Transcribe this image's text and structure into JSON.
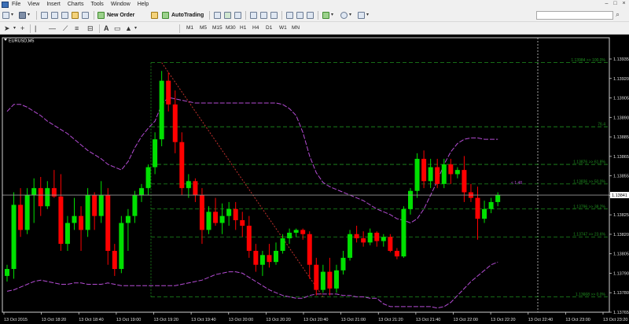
{
  "menu": [
    "File",
    "View",
    "Insert",
    "Charts",
    "Tools",
    "Window",
    "Help"
  ],
  "window_controls": [
    "–",
    "□",
    "×"
  ],
  "toolbar": {
    "new_order": "New Order",
    "autotrading": "AutoTrading",
    "timeframes": [
      "M1",
      "M5",
      "M15",
      "M30",
      "H1",
      "H4",
      "D1",
      "W1",
      "MN"
    ]
  },
  "chart": {
    "symbol_label": "EURUSD,M5",
    "colors": {
      "bull": "#00e000",
      "bear": "#ff0000",
      "band": "#b44cd4",
      "fib": "#1f8f1f",
      "trend": "#c0302c",
      "bid": "#999999"
    },
    "price_axis": {
      "ticks": [
        "1.13935",
        "1.13920",
        "1.13905",
        "1.13890",
        "1.13885",
        "1.13865",
        "1.13855",
        "1.13840",
        "1.13825",
        "1.13820",
        "1.13805",
        "1.13790",
        "1.13780",
        "1.13765"
      ],
      "current_price": "1.13841"
    },
    "time_axis": [
      "13 Oct 2015",
      "13 Oct 18:20",
      "13 Oct 18:40",
      "13 Oct 19:00",
      "13 Oct 19:20",
      "13 Oct 19:40",
      "13 Oct 20:00",
      "13 Oct 20:20",
      "13 Oct 20:40",
      "13 Oct 21:00",
      "13 Oct 21:20",
      "13 Oct 21:40",
      "13 Oct 22:00",
      "13 Oct 22:20",
      "13 Oct 22:40",
      "13 Oct 23:00",
      "13 Oct 23:20"
    ],
    "fib_levels": [
      {
        "label": "1.13984 >> 100.0%",
        "price": 1.13935
      },
      {
        "label": "76.4",
        "price": 1.13889
      },
      {
        "label": "1.13876 >> 61.8%",
        "price": 1.13862
      },
      {
        "label": "1.13836 >> 50.0%",
        "price": 1.13848
      },
      {
        "label": "1.13796 >> 38.2%",
        "price": 1.1383
      },
      {
        "label": "1.13747 >> 23.6%",
        "price": 1.1381
      },
      {
        "label": "1.13668 >> 0.0%",
        "price": 1.13767
      }
    ],
    "bid_tag": "< 1.48",
    "price_range": [
      1.13756,
      1.1395
    ]
  },
  "chart_data": {
    "type": "candlestick",
    "candles": [
      [
        1.13782,
        1.1379,
        1.13778,
        1.13787
      ],
      [
        1.13787,
        1.13842,
        1.1378,
        1.13833
      ],
      [
        1.13833,
        1.13845,
        1.1381,
        1.13815
      ],
      [
        1.13815,
        1.13845,
        1.13812,
        1.1384
      ],
      [
        1.1384,
        1.13852,
        1.1382,
        1.13845
      ],
      [
        1.13845,
        1.13853,
        1.13825,
        1.13832
      ],
      [
        1.13832,
        1.1385,
        1.1383,
        1.13845
      ],
      [
        1.13845,
        1.13858,
        1.13838,
        1.13839
      ],
      [
        1.13839,
        1.13855,
        1.138,
        1.13805
      ],
      [
        1.13805,
        1.13825,
        1.138,
        1.1382
      ],
      [
        1.1382,
        1.13838,
        1.13815,
        1.13825
      ],
      [
        1.13825,
        1.13832,
        1.138,
        1.13815
      ],
      [
        1.13815,
        1.13845,
        1.1381,
        1.1384
      ],
      [
        1.1384,
        1.13842,
        1.13815,
        1.13825
      ],
      [
        1.13825,
        1.1385,
        1.1382,
        1.1384
      ],
      [
        1.1384,
        1.13845,
        1.1379,
        1.138
      ],
      [
        1.138,
        1.13805,
        1.13782,
        1.13787
      ],
      [
        1.13787,
        1.13825,
        1.13784,
        1.1382
      ],
      [
        1.1382,
        1.1383,
        1.138,
        1.13825
      ],
      [
        1.13825,
        1.13843,
        1.1382,
        1.1384
      ],
      [
        1.1384,
        1.13848,
        1.13835,
        1.13845
      ],
      [
        1.13845,
        1.13862,
        1.1384,
        1.1386
      ],
      [
        1.1386,
        1.13885,
        1.13855,
        1.1388
      ],
      [
        1.1388,
        1.13929,
        1.13875,
        1.13922
      ],
      [
        1.13922,
        1.13928,
        1.139,
        1.13905
      ],
      [
        1.13905,
        1.13915,
        1.1387,
        1.13878
      ],
      [
        1.13878,
        1.13885,
        1.1384,
        1.13845
      ],
      [
        1.13845,
        1.13855,
        1.13838,
        1.1385
      ],
      [
        1.1385,
        1.13852,
        1.13835,
        1.1384
      ],
      [
        1.1384,
        1.13845,
        1.13805,
        1.13815
      ],
      [
        1.13815,
        1.13832,
        1.13812,
        1.13828
      ],
      [
        1.13828,
        1.13838,
        1.13818,
        1.1382
      ],
      [
        1.1382,
        1.13834,
        1.13812,
        1.13825
      ],
      [
        1.13825,
        1.13835,
        1.13818,
        1.1383
      ],
      [
        1.1383,
        1.13835,
        1.13815,
        1.13822
      ],
      [
        1.13822,
        1.13828,
        1.1381,
        1.13818
      ],
      [
        1.13818,
        1.13825,
        1.13795,
        1.138
      ],
      [
        1.138,
        1.13805,
        1.13785,
        1.1379
      ],
      [
        1.1379,
        1.138,
        1.13782,
        1.13797
      ],
      [
        1.13797,
        1.13805,
        1.13788,
        1.13792
      ],
      [
        1.13792,
        1.13806,
        1.1379,
        1.138
      ],
      [
        1.138,
        1.13812,
        1.13798,
        1.13809
      ],
      [
        1.13809,
        1.13816,
        1.13805,
        1.13813
      ],
      [
        1.13813,
        1.13816,
        1.1381,
        1.13815
      ],
      [
        1.13815,
        1.13816,
        1.13808,
        1.13812
      ],
      [
        1.13812,
        1.13814,
        1.1378,
        1.1379
      ],
      [
        1.1379,
        1.13795,
        1.13768,
        1.13772
      ],
      [
        1.13772,
        1.1379,
        1.1377,
        1.13785
      ],
      [
        1.13785,
        1.13795,
        1.13768,
        1.13773
      ],
      [
        1.13773,
        1.1379,
        1.1377,
        1.13786
      ],
      [
        1.13786,
        1.138,
        1.13783,
        1.13795
      ],
      [
        1.13795,
        1.13815,
        1.13793,
        1.13812
      ],
      [
        1.13812,
        1.13818,
        1.13806,
        1.13809
      ],
      [
        1.13809,
        1.13814,
        1.13803,
        1.13806
      ],
      [
        1.13806,
        1.13816,
        1.13804,
        1.13813
      ],
      [
        1.13813,
        1.13814,
        1.13803,
        1.13807
      ],
      [
        1.13807,
        1.13812,
        1.13803,
        1.1381
      ],
      [
        1.1381,
        1.13812,
        1.13799,
        1.138
      ],
      [
        1.138,
        1.13802,
        1.13794,
        1.13796
      ],
      [
        1.13796,
        1.13832,
        1.13795,
        1.1383
      ],
      [
        1.1383,
        1.13845,
        1.13826,
        1.13843
      ],
      [
        1.13843,
        1.1387,
        1.13838,
        1.13866
      ],
      [
        1.13866,
        1.13872,
        1.13845,
        1.1385
      ],
      [
        1.1385,
        1.13866,
        1.13845,
        1.1386
      ],
      [
        1.1386,
        1.13866,
        1.13845,
        1.13848
      ],
      [
        1.13848,
        1.13866,
        1.13845,
        1.13862
      ],
      [
        1.13862,
        1.13866,
        1.13848,
        1.13855
      ],
      [
        1.13855,
        1.1386,
        1.13852,
        1.13858
      ],
      [
        1.13858,
        1.13868,
        1.13835,
        1.13842
      ],
      [
        1.13842,
        1.13848,
        1.13835,
        1.13838
      ],
      [
        1.13838,
        1.13846,
        1.13808,
        1.13823
      ],
      [
        1.13823,
        1.13836,
        1.1382,
        1.1383
      ],
      [
        1.1383,
        1.13838,
        1.13827,
        1.13835
      ],
      [
        1.13835,
        1.13842,
        1.13832,
        1.1384
      ]
    ],
    "bands": {
      "upper": [
        1.139,
        1.13905,
        1.13905,
        1.13903,
        1.139,
        1.13897,
        1.13893,
        1.1389,
        1.13887,
        1.13884,
        1.1388,
        1.13876,
        1.13872,
        1.13869,
        1.13866,
        1.13862,
        1.1386,
        1.13858,
        1.13864,
        1.13874,
        1.13882,
        1.13888,
        1.13893,
        1.13905,
        1.1391,
        1.13909,
        1.13908,
        1.13907,
        1.13906,
        1.13906,
        1.13906,
        1.13906,
        1.13906,
        1.13906,
        1.13906,
        1.13906,
        1.13906,
        1.13906,
        1.13906,
        1.13906,
        1.13906,
        1.13905,
        1.13902,
        1.13897,
        1.13885,
        1.13868,
        1.13856,
        1.13849,
        1.13846,
        1.13844,
        1.13842,
        1.1384,
        1.13838,
        1.13836,
        1.13833,
        1.1383,
        1.13828,
        1.13826,
        1.13823,
        1.13822,
        1.1382,
        1.13823,
        1.1383,
        1.1384,
        1.1385,
        1.13862,
        1.13871,
        1.13877,
        1.1388,
        1.13881,
        1.13881,
        1.1388,
        1.1388,
        1.1388
      ],
      "lower": [
        1.13771,
        1.13772,
        1.13774,
        1.13776,
        1.13778,
        1.13779,
        1.13778,
        1.13777,
        1.13776,
        1.13776,
        1.13777,
        1.13777,
        1.13776,
        1.13776,
        1.13776,
        1.13777,
        1.13776,
        1.13775,
        1.13775,
        1.13775,
        1.13775,
        1.13775,
        1.13775,
        1.13775,
        1.13775,
        1.13775,
        1.13776,
        1.13777,
        1.13778,
        1.13779,
        1.13781,
        1.13783,
        1.13784,
        1.13785,
        1.13785,
        1.13784,
        1.13781,
        1.13778,
        1.13775,
        1.13772,
        1.1377,
        1.13768,
        1.13767,
        1.13766,
        1.13766,
        1.13768,
        1.13769,
        1.13769,
        1.13769,
        1.13769,
        1.13768,
        1.13768,
        1.13767,
        1.13767,
        1.13766,
        1.13766,
        1.13762,
        1.1376,
        1.1376,
        1.1376,
        1.1376,
        1.1376,
        1.1376,
        1.1376,
        1.13759,
        1.1376,
        1.13763,
        1.13768,
        1.13773,
        1.13778,
        1.13782,
        1.13786,
        1.1379,
        1.13792
      ]
    },
    "trendline": {
      "from": {
        "candle": 23,
        "price": 1.13935
      },
      "to": {
        "candle": 47,
        "price": 1.13767
      }
    },
    "xlabel": "",
    "ylabel": ""
  }
}
